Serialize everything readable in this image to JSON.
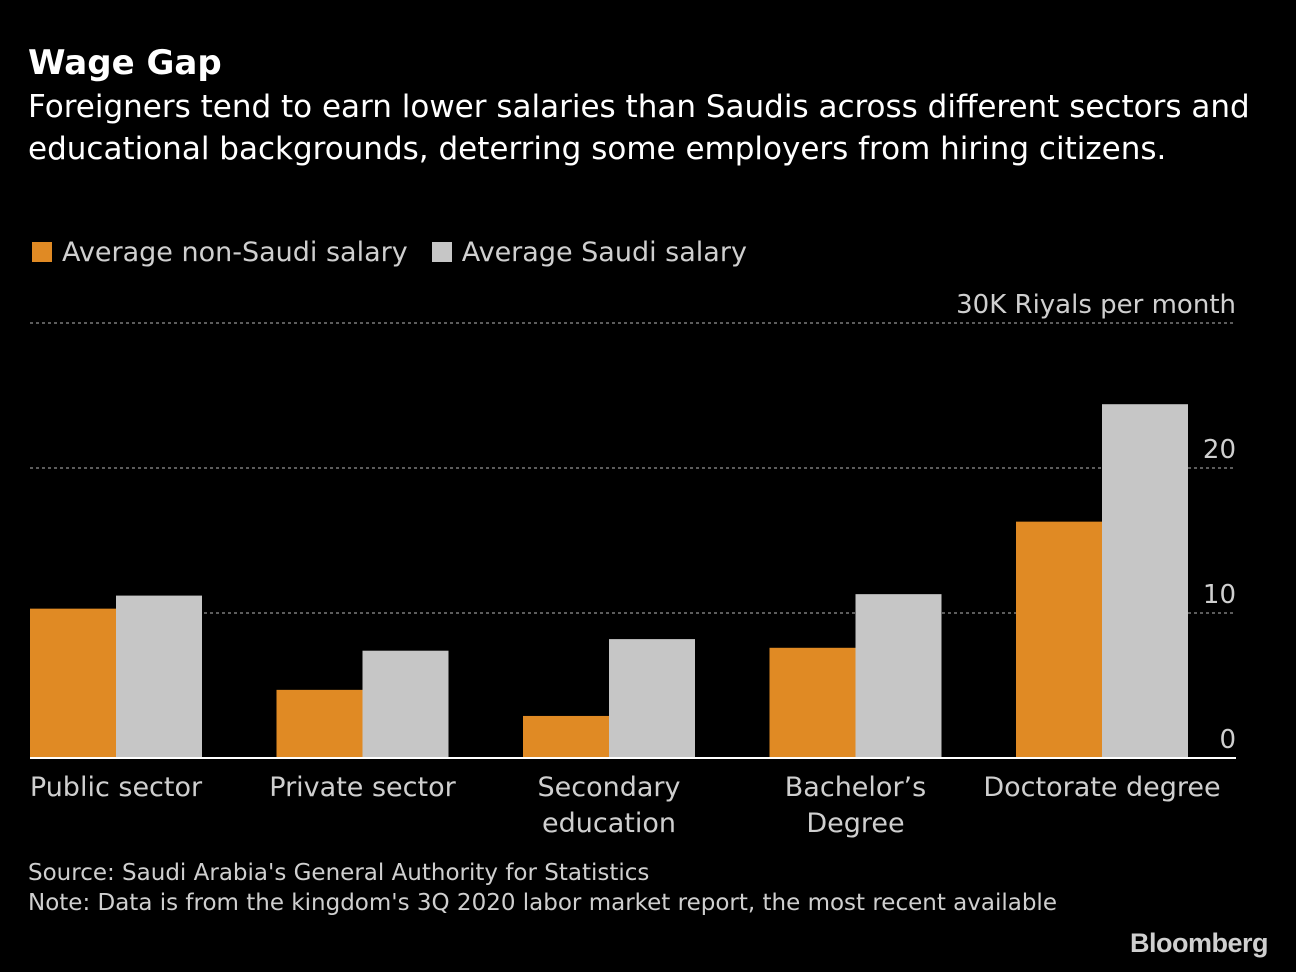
{
  "header": {
    "title": "Wage Gap",
    "subtitle": "Foreigners tend to earn lower salaries than Saudis across different sectors and educational backgrounds, deterring some employers from hiring citizens."
  },
  "legend": {
    "non_saudi": "Average non-Saudi salary",
    "saudi": "Average Saudi salary"
  },
  "colors": {
    "non_saudi": "#e08a24",
    "saudi": "#c6c6c6",
    "background": "#000000",
    "grid": "#7a7a7a"
  },
  "footer": {
    "source": "Source: Saudi Arabia's General Authority for Statistics",
    "note": "Note: Data is from the kingdom's 3Q 2020 labor market report, the most recent available"
  },
  "logo": "Bloomberg",
  "chart_data": {
    "type": "bar",
    "title": "Wage Gap",
    "unit_label": "30K Riyals per month",
    "categories": [
      "Public sector",
      "Private sector",
      "Secondary education",
      "Bachelor’s Degree",
      "Doctorate degree"
    ],
    "category_lines": [
      [
        "Public sector"
      ],
      [
        "Private sector"
      ],
      [
        "Secondary",
        "education"
      ],
      [
        "Bachelor’s",
        "Degree"
      ],
      [
        "Doctorate degree"
      ]
    ],
    "series": [
      {
        "name": "Average non-Saudi salary",
        "values": [
          10.3,
          4.7,
          2.9,
          7.6,
          16.3
        ]
      },
      {
        "name": "Average Saudi salary",
        "values": [
          11.2,
          7.4,
          8.2,
          11.3,
          24.4
        ]
      }
    ],
    "y_ticks": [
      0,
      10,
      20,
      30
    ],
    "y_tick_labels": [
      "0",
      "10",
      "20",
      "30K Riyals per month"
    ],
    "ylim": [
      0,
      30
    ],
    "grid": true,
    "legend_position": "top-left"
  }
}
